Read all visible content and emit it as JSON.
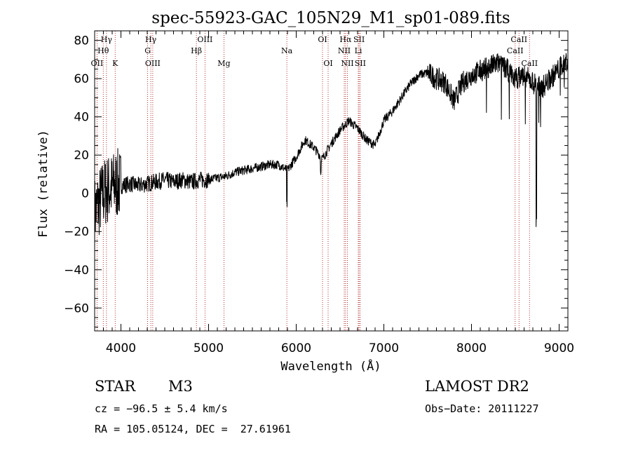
{
  "chart_data": {
    "type": "line",
    "title": "spec-55923-GAC_105N29_M1_sp01-089.fits",
    "xlabel": "Wavelength (Å)",
    "ylabel": "Flux (relative)",
    "xlim": [
      3700,
      9100
    ],
    "ylim": [
      -72,
      85
    ],
    "xticks": [
      4000,
      5000,
      6000,
      7000,
      8000,
      9000
    ],
    "yticks": [
      -60,
      -40,
      -20,
      0,
      20,
      40,
      60,
      80
    ],
    "grid": false,
    "series": [
      {
        "x": [
          3700,
          3750,
          3800,
          3850,
          3900,
          3950,
          4000,
          4100,
          4200,
          4300,
          4400,
          4500,
          4600,
          4700,
          4800,
          4900,
          5000,
          5100,
          5200,
          5300,
          5400,
          5500,
          5600,
          5700,
          5800,
          5900,
          6000,
          6100,
          6200,
          6300,
          6400,
          6500,
          6600,
          6700,
          6800,
          6900,
          7000,
          7100,
          7200,
          7300,
          7400,
          7500,
          7600,
          7700,
          7800,
          7900,
          8000,
          8100,
          8200,
          8300,
          8400,
          8500,
          8600,
          8700,
          8800,
          8900,
          9000,
          9100
        ],
        "y": [
          -10,
          -5,
          0,
          2,
          3,
          5,
          4,
          5,
          4,
          5,
          6,
          7,
          6,
          7,
          6,
          7,
          7,
          8,
          9,
          11,
          12,
          13,
          14,
          15,
          15,
          12,
          19,
          28,
          24,
          18,
          26,
          33,
          38,
          34,
          28,
          25,
          38,
          43,
          50,
          57,
          62,
          63,
          60,
          58,
          48,
          58,
          62,
          64,
          66,
          68,
          65,
          60,
          62,
          58,
          55,
          60,
          65,
          70
        ]
      }
    ],
    "line_markers": [
      {
        "label": "Hγ",
        "x": 3835,
        "row": 0
      },
      {
        "label": "Hθ",
        "x": 3798,
        "row": 1
      },
      {
        "label": "OII",
        "x": 3727,
        "row": 2
      },
      {
        "label": "K",
        "x": 3934,
        "row": 2
      },
      {
        "label": "Hγ",
        "x": 4341,
        "row": 0
      },
      {
        "label": "G",
        "x": 4305,
        "row": 1
      },
      {
        "label": "OIII",
        "x": 4363,
        "row": 2
      },
      {
        "label": "OIII",
        "x": 4959,
        "row": 0
      },
      {
        "label": "Hβ",
        "x": 4861,
        "row": 1
      },
      {
        "label": "Mg",
        "x": 5175,
        "row": 2
      },
      {
        "label": "Na",
        "x": 5893,
        "row": 1
      },
      {
        "label": "OI",
        "x": 6300,
        "row": 0
      },
      {
        "label": "OI",
        "x": 6364,
        "row": 2
      },
      {
        "label": "Hα",
        "x": 6563,
        "row": 0
      },
      {
        "label": "SII",
        "x": 6717,
        "row": 0
      },
      {
        "label": "NII",
        "x": 6548,
        "row": 1
      },
      {
        "label": "Li",
        "x": 6708,
        "row": 1
      },
      {
        "label": "NII",
        "x": 6584,
        "row": 2
      },
      {
        "label": "SII",
        "x": 6731,
        "row": 2
      },
      {
        "label": "CaII",
        "x": 8542,
        "row": 0
      },
      {
        "label": "CaII",
        "x": 8498,
        "row": 1
      },
      {
        "label": "CaII",
        "x": 8662,
        "row": 2
      }
    ]
  },
  "info": {
    "class": "STAR",
    "subclass": "M3",
    "survey": "LAMOST DR2",
    "cz": "cz = −96.5 ± 5.4 km/s",
    "obs_date": "Obs−Date: 20111227",
    "coords": "RA = 105.05124, DEC =  27.61961"
  },
  "colors": {
    "marker_line": "#a00000",
    "axis": "#000000",
    "spectrum": "#000000"
  }
}
